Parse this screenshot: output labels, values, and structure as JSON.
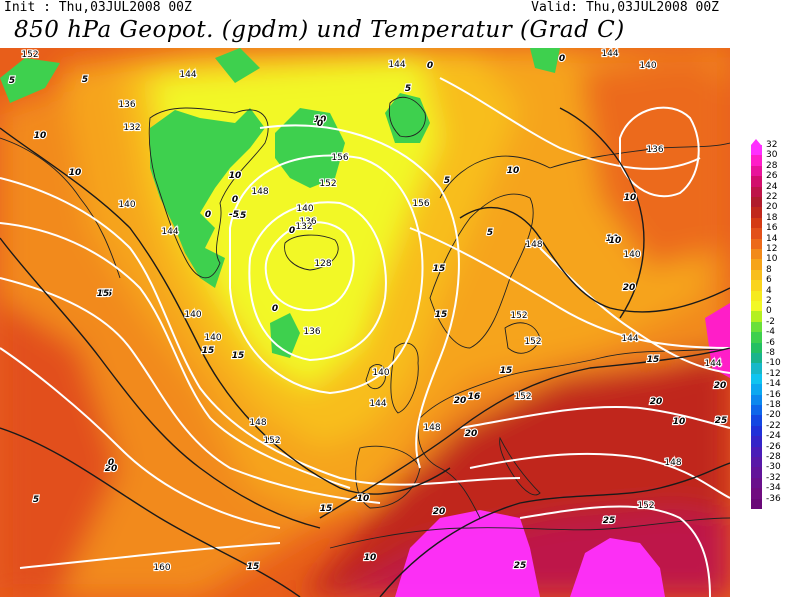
{
  "header": {
    "init": "Init : Thu,03JUL2008 00Z",
    "valid": "Valid: Thu,03JUL2008 00Z",
    "title": "850 hPa Geopot. (gpdm) und Temperatur (Grad C)"
  },
  "legend": {
    "items": [
      {
        "label": "32",
        "color": "#ff30ff"
      },
      {
        "label": "30",
        "color": "#ff1ec8"
      },
      {
        "label": "28",
        "color": "#e8149a"
      },
      {
        "label": "26",
        "color": "#d20e6c"
      },
      {
        "label": "24",
        "color": "#be1448"
      },
      {
        "label": "22",
        "color": "#b01c2c"
      },
      {
        "label": "20",
        "color": "#c0281c"
      },
      {
        "label": "18",
        "color": "#d43a14"
      },
      {
        "label": "16",
        "color": "#e2501a"
      },
      {
        "label": "14",
        "color": "#ec6a1a"
      },
      {
        "label": "12",
        "color": "#f28a1a"
      },
      {
        "label": "10",
        "color": "#f6a41a"
      },
      {
        "label": "8",
        "color": "#f8be1c"
      },
      {
        "label": "6",
        "color": "#fad41c"
      },
      {
        "label": "4",
        "color": "#f6ea1e"
      },
      {
        "label": "2",
        "color": "#f2f826"
      },
      {
        "label": "0",
        "color": "#b4f020"
      },
      {
        "label": "-2",
        "color": "#6ae03a"
      },
      {
        "label": "-4",
        "color": "#3ed04e"
      },
      {
        "label": "-6",
        "color": "#24c062"
      },
      {
        "label": "-8",
        "color": "#1ab48c"
      },
      {
        "label": "-10",
        "color": "#18b8c8"
      },
      {
        "label": "-12",
        "color": "#10c4f0"
      },
      {
        "label": "-14",
        "color": "#0ca8f0"
      },
      {
        "label": "-16",
        "color": "#0c88ee"
      },
      {
        "label": "-18",
        "color": "#0e66ea"
      },
      {
        "label": "-20",
        "color": "#1446e2"
      },
      {
        "label": "-22",
        "color": "#2030d8"
      },
      {
        "label": "-24",
        "color": "#3424c8"
      },
      {
        "label": "-26",
        "color": "#4a1cb8"
      },
      {
        "label": "-28",
        "color": "#5818a8"
      },
      {
        "label": "-30",
        "color": "#62149a"
      },
      {
        "label": "-32",
        "color": "#6a108c"
      },
      {
        "label": "-34",
        "color": "#700c80"
      },
      {
        "label": "-36",
        "color": "#6a0878"
      }
    ]
  },
  "map": {
    "geopotential_labels": [
      "152",
      "144",
      "144",
      "136",
      "132",
      "140",
      "144",
      "140",
      "140",
      "148",
      "152",
      "160",
      "148",
      "156",
      "152",
      "140",
      "136",
      "132",
      "128",
      "136",
      "140",
      "144",
      "148",
      "156",
      "144",
      "148",
      "152",
      "152",
      "152",
      "148",
      "152",
      "144",
      "140",
      "136",
      "140",
      "144"
    ],
    "temperature_labels": [
      "5",
      "5",
      "10",
      "10",
      "15",
      "15",
      "15",
      "15",
      "10",
      "10",
      "5",
      "0",
      "0",
      "0",
      "0",
      "-5",
      "0",
      "0",
      "0",
      "5",
      "5",
      "10",
      "10",
      "10",
      "15",
      "15",
      "15",
      "16",
      "20",
      "20",
      "20",
      "20",
      "25",
      "25",
      "25",
      "20",
      "15",
      "10",
      "10",
      "20",
      "10",
      "15",
      "10",
      "15",
      "15",
      "20",
      "0",
      "5"
    ]
  }
}
